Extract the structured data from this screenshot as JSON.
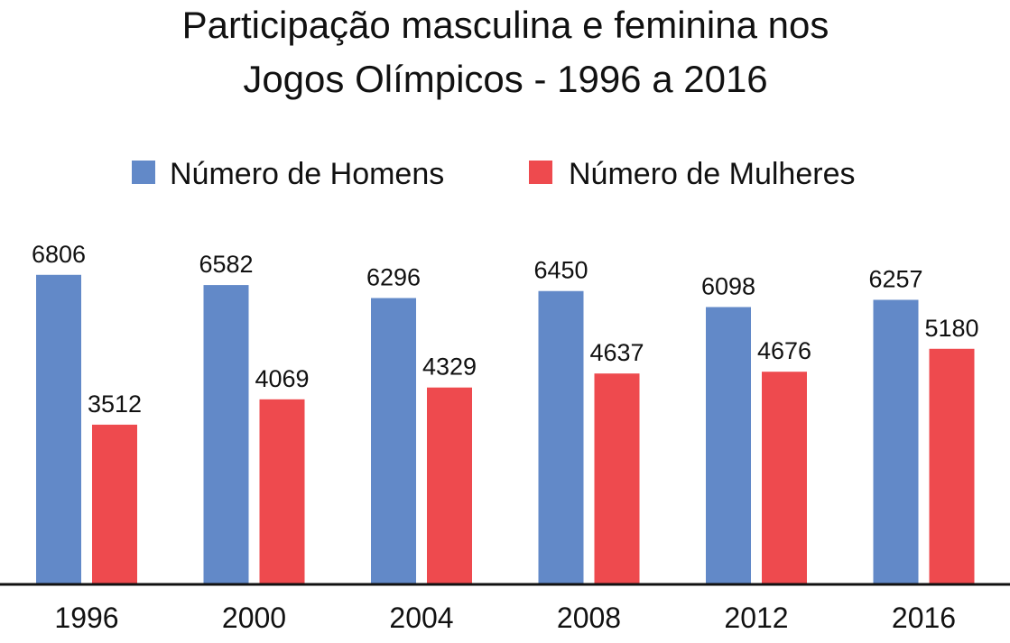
{
  "chart_data": {
    "type": "bar",
    "title_lines": [
      "Participação masculina e feminina nos",
      "Jogos Olímpicos - 1996 a 2016"
    ],
    "categories": [
      "1996",
      "2000",
      "2004",
      "2008",
      "2012",
      "2016"
    ],
    "series": [
      {
        "name": "Número de Homens",
        "color": "#6289c8",
        "values": [
          6806,
          6582,
          6296,
          6450,
          6098,
          6257
        ]
      },
      {
        "name": "Número de Mulheres",
        "color": "#ee4a4e",
        "values": [
          3512,
          4069,
          4329,
          4637,
          4676,
          5180
        ]
      }
    ],
    "ylim": [
      0,
      7000
    ],
    "legend_position": "top-center",
    "grid": false
  }
}
